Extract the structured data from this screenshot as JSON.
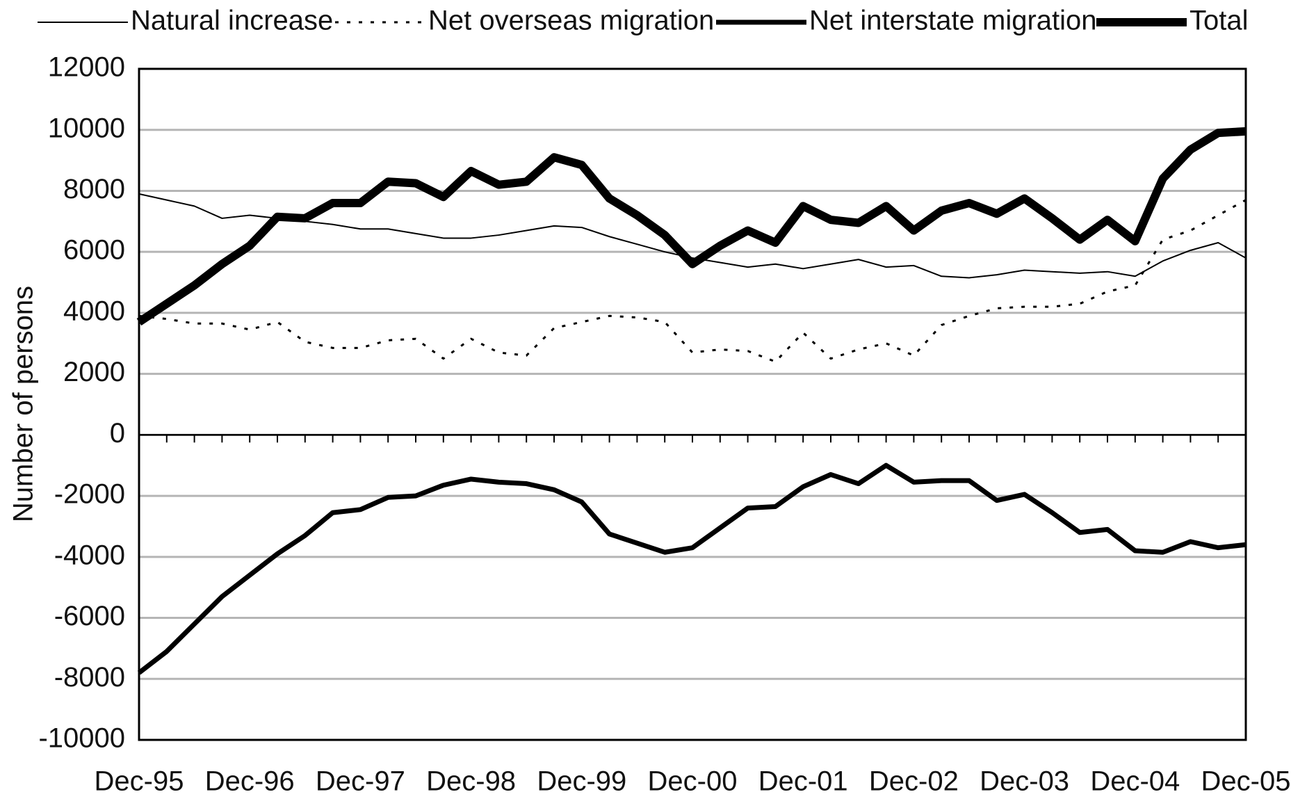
{
  "chart_data": {
    "type": "line",
    "y_label": "Number of persons",
    "categories": [
      "Dec-95",
      null,
      null,
      null,
      "Dec-96",
      null,
      null,
      null,
      "Dec-97",
      null,
      null,
      null,
      "Dec-98",
      null,
      null,
      null,
      "Dec-99",
      null,
      null,
      null,
      "Dec-00",
      null,
      null,
      null,
      "Dec-01",
      null,
      null,
      null,
      "Dec-02",
      null,
      null,
      null,
      "Dec-03",
      null,
      null,
      null,
      "Dec-04",
      null,
      null,
      null,
      "Dec-05"
    ],
    "series": [
      {
        "name": "Natural increase",
        "color": "#000000",
        "values": [
          7900,
          7700,
          7500,
          7100,
          7200,
          7100,
          7000,
          6900,
          6750,
          6750,
          6600,
          6450,
          6450,
          6550,
          6700,
          6850,
          6800,
          6500,
          6250,
          6000,
          5800,
          5650,
          5500,
          5600,
          5450,
          5600,
          5750,
          5500,
          5550,
          5200,
          5150,
          5250,
          5400,
          5350,
          5300,
          5350,
          5200,
          5700,
          6050,
          6300,
          5800
        ]
      },
      {
        "name": "Net overseas migration",
        "color": "#000000",
        "values": [
          3900,
          3800,
          3650,
          3650,
          3450,
          3700,
          3050,
          2850,
          2850,
          3100,
          3150,
          2500,
          3150,
          2700,
          2600,
          3500,
          3700,
          3900,
          3850,
          3700,
          2700,
          2800,
          2750,
          2400,
          3350,
          2500,
          2800,
          3000,
          2600,
          3600,
          3900,
          4150,
          4200,
          4200,
          4300,
          4700,
          4900,
          6400,
          6700,
          7200,
          7700
        ]
      },
      {
        "name": "Net interstate migration",
        "color": "#000000",
        "values": [
          -7800,
          -7100,
          -6200,
          -5300,
          -4600,
          -3900,
          -3300,
          -2550,
          -2450,
          -2050,
          -2000,
          -1650,
          -1450,
          -1550,
          -1600,
          -1800,
          -2200,
          -3250,
          -3550,
          -3850,
          -3700,
          -3050,
          -2400,
          -2350,
          -1700,
          -1300,
          -1600,
          -1000,
          -1550,
          -1500,
          -1500,
          -2150,
          -1950,
          -2550,
          -3200,
          -3100,
          -3800,
          -3850,
          -3500,
          -3700,
          -3600
        ]
      },
      {
        "name": "Total",
        "color": "#000000",
        "values": [
          3700,
          4300,
          4900,
          5600,
          6200,
          7150,
          7100,
          7600,
          7600,
          8300,
          8250,
          7800,
          8650,
          8200,
          8300,
          9100,
          8850,
          7750,
          7200,
          6550,
          5600,
          6200,
          6700,
          6300,
          7500,
          7050,
          6950,
          7500,
          6700,
          7350,
          7600,
          7250,
          7750,
          7100,
          6400,
          7050,
          6350,
          8400,
          9350,
          9900,
          9950
        ]
      }
    ],
    "ylim": [
      -10000,
      12000
    ],
    "yticks": [
      -10000,
      -8000,
      -6000,
      -4000,
      -2000,
      0,
      2000,
      4000,
      6000,
      8000,
      10000,
      12000
    ],
    "grid": true,
    "legend": "top"
  }
}
